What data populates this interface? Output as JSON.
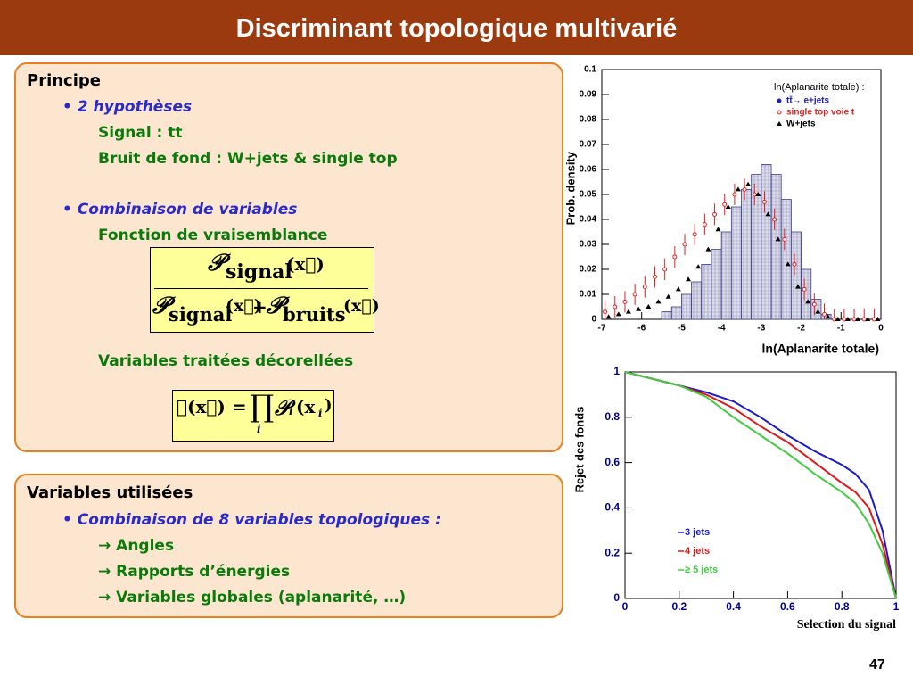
{
  "title": "Discriminant topologique multivarié",
  "box1": {
    "heading": "Principe",
    "lines": [
      "• 2 hypothèses",
      "Signal : tt",
      "Bruit de fond : W+jets & single top",
      "• Combinaison de variables",
      "Fonction de vraisemblance",
      "Variables traitées décorellées"
    ],
    "formula1": {
      "numerator": [
        "𝒫",
        "signal",
        "(x⃗)"
      ],
      "denominator": [
        "𝒫",
        "signal",
        "(x⃗)",
        "+",
        "𝒫",
        "bruits",
        "(x⃗)"
      ]
    },
    "formula2": {
      "lhs": "𝒫(x⃗) =",
      "prod": "∏",
      "prod_index": "i",
      "rhs": "𝒫",
      "rhs_sub": "i",
      "arg": "(x",
      "arg_sub": "i",
      "close": ")"
    }
  },
  "box2": {
    "heading": "Variables utilisées",
    "lines": [
      "• Combinaison de 8 variables topologiques :",
      "→ Angles",
      "→ Rapports d’énergies",
      "→ Variables globales (aplanarité, …)"
    ]
  },
  "page_number": "47",
  "chart_data": [
    {
      "type": "histogram",
      "legend_title": "ln(Aplanarite totale) :",
      "xlabel": "ln(Aplanarite totale)",
      "ylabel": "Prob. density",
      "bins": [
        -7,
        -6.75,
        -6.5,
        -6.25,
        -6,
        -5.75,
        -5.5,
        -5.25,
        -5,
        -4.75,
        -4.5,
        -4.25,
        -4,
        -3.75,
        -3.5,
        -3.25,
        -3,
        -2.75,
        -2.5,
        -2.25,
        -2,
        -1.75,
        -1.5,
        -1.25,
        -1,
        -0.75,
        -0.5,
        -0.25,
        0
      ],
      "series": [
        {
          "name": "tt̄→ e+jets",
          "color": "#2020c0",
          "values": [
            0,
            0,
            0,
            0,
            0,
            0,
            0.003,
            0.005,
            0.01,
            0.015,
            0.022,
            0.028,
            0.035,
            0.045,
            0.052,
            0.058,
            0.062,
            0.058,
            0.048,
            0.035,
            0.02,
            0.008,
            0.002,
            0,
            0,
            0,
            0,
            0
          ]
        },
        {
          "name": "single top voie t",
          "color": "#e02020",
          "x": [
            -6.875,
            -6.625,
            -6.375,
            -6.125,
            -5.875,
            -5.625,
            -5.375,
            -5.125,
            -4.875,
            -4.625,
            -4.375,
            -4.125,
            -3.875,
            -3.625,
            -3.375,
            -3.125,
            -2.875,
            -2.625,
            -2.375,
            -2.125,
            -1.875,
            -1.625,
            -1.375,
            -1.125,
            -0.875,
            -0.625,
            -0.375,
            -0.125
          ],
          "values": [
            0.003,
            0.005,
            0.007,
            0.01,
            0.013,
            0.017,
            0.02,
            0.025,
            0.03,
            0.034,
            0.038,
            0.042,
            0.046,
            0.05,
            0.052,
            0.05,
            0.047,
            0.04,
            0.032,
            0.022,
            0.012,
            0.006,
            0.002,
            0,
            0,
            0,
            0,
            0
          ]
        },
        {
          "name": "W+jets",
          "color": "#000000",
          "x": [
            -6.875,
            -6.625,
            -6.375,
            -6.125,
            -5.875,
            -5.625,
            -5.375,
            -5.125,
            -4.875,
            -4.625,
            -4.375,
            -4.125,
            -3.875,
            -3.625,
            -3.375,
            -3.125,
            -2.875,
            -2.625,
            -2.375,
            -2.125,
            -1.875,
            -1.625,
            -1.375,
            -1.125,
            -0.875,
            -0.625,
            -0.375,
            -0.125
          ],
          "values": [
            0.001,
            0.002,
            0.003,
            0.004,
            0.005,
            0.007,
            0.009,
            0.012,
            0.016,
            0.021,
            0.028,
            0.036,
            0.045,
            0.052,
            0.054,
            0.05,
            0.042,
            0.032,
            0.022,
            0.013,
            0.007,
            0.003,
            0.001,
            0,
            0,
            0,
            0,
            0
          ]
        }
      ],
      "xlim": [
        -7,
        0
      ],
      "ylim": [
        0,
        0.1
      ],
      "xticks": [
        -7,
        -6,
        -5,
        -4,
        -3,
        -2,
        -1,
        0
      ],
      "yticks": [
        0,
        0.01,
        0.02,
        0.03,
        0.04,
        0.05,
        0.06,
        0.07,
        0.08,
        0.09,
        0.1
      ]
    },
    {
      "type": "line",
      "xlabel": "Selection du signal",
      "ylabel": "Rejet des fonds",
      "x": [
        0,
        0.1,
        0.2,
        0.3,
        0.4,
        0.5,
        0.6,
        0.7,
        0.8,
        0.85,
        0.9,
        0.95,
        1
      ],
      "series": [
        {
          "name": "3 jets",
          "color": "#1a1acc",
          "values": [
            1,
            0.97,
            0.94,
            0.91,
            0.87,
            0.8,
            0.72,
            0.65,
            0.59,
            0.55,
            0.48,
            0.3,
            0
          ]
        },
        {
          "name": "4 jets",
          "color": "#e01818",
          "values": [
            1,
            0.97,
            0.94,
            0.9,
            0.84,
            0.76,
            0.69,
            0.6,
            0.51,
            0.47,
            0.4,
            0.24,
            0
          ]
        },
        {
          "name": "≥ 5 jets",
          "color": "#40cc40",
          "values": [
            1,
            0.97,
            0.94,
            0.89,
            0.8,
            0.72,
            0.64,
            0.55,
            0.47,
            0.42,
            0.33,
            0.2,
            0
          ]
        }
      ],
      "xlim": [
        0,
        1
      ],
      "ylim": [
        0,
        1
      ],
      "xticks": [
        0,
        0.2,
        0.4,
        0.6,
        0.8,
        1
      ],
      "yticks": [
        0,
        0.2,
        0.4,
        0.6,
        0.8,
        1
      ]
    }
  ]
}
